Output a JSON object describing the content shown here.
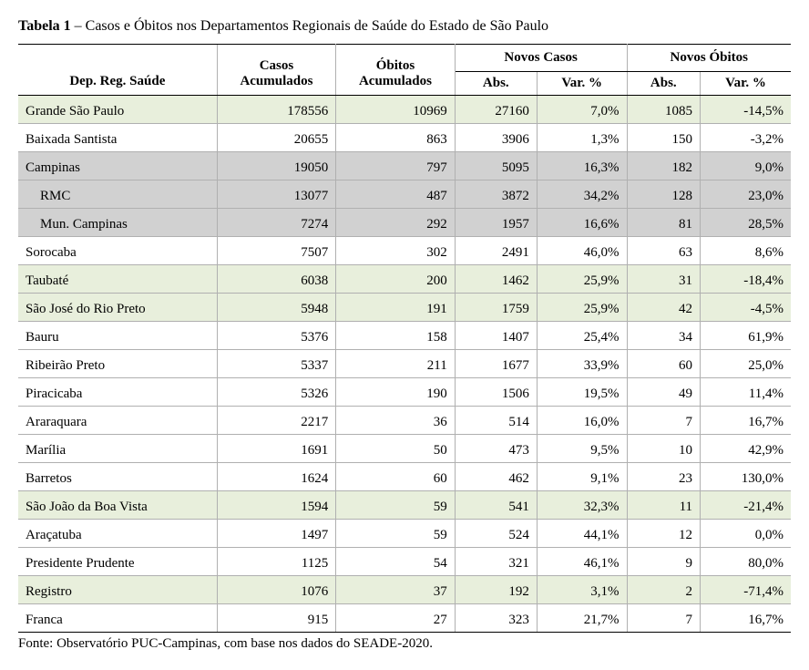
{
  "title_bold": "Tabela 1",
  "title_rest": " – Casos e Óbitos nos Departamentos Regionais de Saúde do Estado de São Paulo",
  "headers": {
    "dep": "Dep. Reg. Saúde",
    "casos": "Casos Acumulados",
    "obitos": "Óbitos Acumulados",
    "novos_casos": "Novos Casos",
    "novos_obitos": "Novos Óbitos",
    "abs": "Abs.",
    "var": "Var. %"
  },
  "rows": [
    {
      "name": "Grande São Paulo",
      "casos": "178556",
      "obitos": "10969",
      "nc_abs": "27160",
      "nc_var": "7,0%",
      "no_abs": "1085",
      "no_var": "-14,5%",
      "cls": "green",
      "indent": false
    },
    {
      "name": "Baixada Santista",
      "casos": "20655",
      "obitos": "863",
      "nc_abs": "3906",
      "nc_var": "1,3%",
      "no_abs": "150",
      "no_var": "-3,2%",
      "cls": "",
      "indent": false
    },
    {
      "name": "Campinas",
      "casos": "19050",
      "obitos": "797",
      "nc_abs": "5095",
      "nc_var": "16,3%",
      "no_abs": "182",
      "no_var": "9,0%",
      "cls": "gray",
      "indent": false
    },
    {
      "name": "RMC",
      "casos": "13077",
      "obitos": "487",
      "nc_abs": "3872",
      "nc_var": "34,2%",
      "no_abs": "128",
      "no_var": "23,0%",
      "cls": "gray",
      "indent": true
    },
    {
      "name": "Mun. Campinas",
      "casos": "7274",
      "obitos": "292",
      "nc_abs": "1957",
      "nc_var": "16,6%",
      "no_abs": "81",
      "no_var": "28,5%",
      "cls": "gray",
      "indent": true
    },
    {
      "name": "Sorocaba",
      "casos": "7507",
      "obitos": "302",
      "nc_abs": "2491",
      "nc_var": "46,0%",
      "no_abs": "63",
      "no_var": "8,6%",
      "cls": "",
      "indent": false
    },
    {
      "name": "Taubaté",
      "casos": "6038",
      "obitos": "200",
      "nc_abs": "1462",
      "nc_var": "25,9%",
      "no_abs": "31",
      "no_var": "-18,4%",
      "cls": "green",
      "indent": false
    },
    {
      "name": "São José do Rio Preto",
      "casos": "5948",
      "obitos": "191",
      "nc_abs": "1759",
      "nc_var": "25,9%",
      "no_abs": "42",
      "no_var": "-4,5%",
      "cls": "green",
      "indent": false
    },
    {
      "name": "Bauru",
      "casos": "5376",
      "obitos": "158",
      "nc_abs": "1407",
      "nc_var": "25,4%",
      "no_abs": "34",
      "no_var": "61,9%",
      "cls": "",
      "indent": false
    },
    {
      "name": "Ribeirão Preto",
      "casos": "5337",
      "obitos": "211",
      "nc_abs": "1677",
      "nc_var": "33,9%",
      "no_abs": "60",
      "no_var": "25,0%",
      "cls": "",
      "indent": false
    },
    {
      "name": "Piracicaba",
      "casos": "5326",
      "obitos": "190",
      "nc_abs": "1506",
      "nc_var": "19,5%",
      "no_abs": "49",
      "no_var": "11,4%",
      "cls": "",
      "indent": false
    },
    {
      "name": "Araraquara",
      "casos": "2217",
      "obitos": "36",
      "nc_abs": "514",
      "nc_var": "16,0%",
      "no_abs": "7",
      "no_var": "16,7%",
      "cls": "",
      "indent": false
    },
    {
      "name": "Marília",
      "casos": "1691",
      "obitos": "50",
      "nc_abs": "473",
      "nc_var": "9,5%",
      "no_abs": "10",
      "no_var": "42,9%",
      "cls": "",
      "indent": false
    },
    {
      "name": "Barretos",
      "casos": "1624",
      "obitos": "60",
      "nc_abs": "462",
      "nc_var": "9,1%",
      "no_abs": "23",
      "no_var": "130,0%",
      "cls": "",
      "indent": false
    },
    {
      "name": "São João da Boa Vista",
      "casos": "1594",
      "obitos": "59",
      "nc_abs": "541",
      "nc_var": "32,3%",
      "no_abs": "11",
      "no_var": "-21,4%",
      "cls": "green",
      "indent": false
    },
    {
      "name": "Araçatuba",
      "casos": "1497",
      "obitos": "59",
      "nc_abs": "524",
      "nc_var": "44,1%",
      "no_abs": "12",
      "no_var": "0,0%",
      "cls": "",
      "indent": false
    },
    {
      "name": "Presidente Prudente",
      "casos": "1125",
      "obitos": "54",
      "nc_abs": "321",
      "nc_var": "46,1%",
      "no_abs": "9",
      "no_var": "80,0%",
      "cls": "",
      "indent": false
    },
    {
      "name": "Registro",
      "casos": "1076",
      "obitos": "37",
      "nc_abs": "192",
      "nc_var": "3,1%",
      "no_abs": "2",
      "no_var": "-71,4%",
      "cls": "green",
      "indent": false
    },
    {
      "name": "Franca",
      "casos": "915",
      "obitos": "27",
      "nc_abs": "323",
      "nc_var": "21,7%",
      "no_abs": "7",
      "no_var": "16,7%",
      "cls": "",
      "indent": false
    }
  ],
  "source": "Fonte: Observatório PUC-Campinas, com base nos dados do SEADE-2020.",
  "style": {
    "green_bg": "#e8efdc",
    "gray_bg": "#d1d1d1",
    "border_color": "#000000",
    "row_border": "#b0b0b0",
    "font_family": "Times New Roman"
  }
}
